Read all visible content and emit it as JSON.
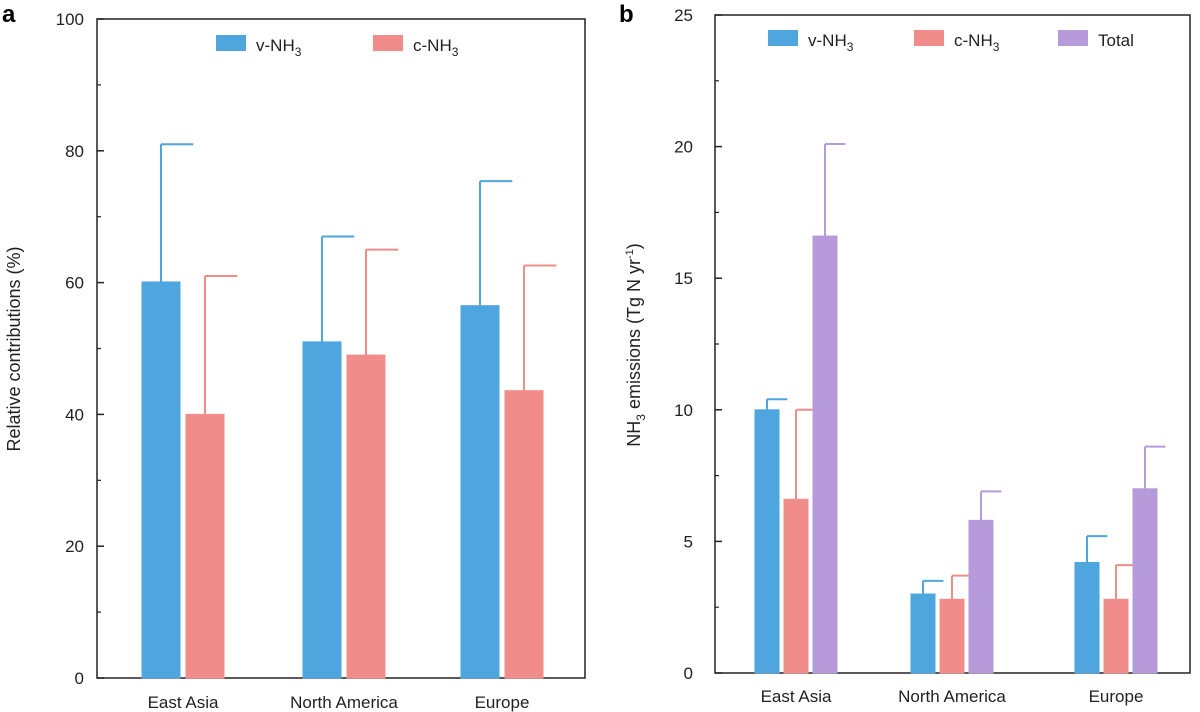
{
  "panels": [
    {
      "label": "a"
    },
    {
      "label": "b"
    }
  ],
  "colors": {
    "v-NH3": "#4fa6df",
    "c-NH3": "#f08c8a",
    "Total": "#b69ad9",
    "axis": "#222222"
  },
  "chart_data": [
    {
      "type": "bar",
      "panel": "a",
      "categories": [
        "East Asia",
        "North America",
        "Europe"
      ],
      "series": [
        {
          "name": "v-NH3",
          "values": [
            60.1,
            51.0,
            56.5
          ],
          "error_upper": [
            81.0,
            67.0,
            75.4
          ],
          "color": "#4fa6df"
        },
        {
          "name": "c-NH3",
          "values": [
            40.0,
            49.0,
            43.6
          ],
          "error_upper": [
            61.0,
            65.0,
            62.6
          ],
          "color": "#f08c8a"
        }
      ],
      "xlabel": "",
      "ylabel": "Relative contributions (%)",
      "ylim": [
        0,
        100
      ],
      "yticks": [
        "0",
        "20",
        "40",
        "60",
        "80",
        "100"
      ],
      "legend": {
        "position": "top",
        "entries": [
          {
            "base": "v-NH",
            "sub": "3"
          },
          {
            "base": "c-NH",
            "sub": "3"
          }
        ]
      },
      "grid": false
    },
    {
      "type": "bar",
      "panel": "b",
      "categories": [
        "East Asia",
        "North America",
        "Europe"
      ],
      "series": [
        {
          "name": "v-NH3",
          "values": [
            10.0,
            3.0,
            4.2
          ],
          "error_upper": [
            10.4,
            3.5,
            5.2
          ],
          "color": "#4fa6df"
        },
        {
          "name": "c-NH3",
          "values": [
            6.6,
            2.8,
            2.8
          ],
          "error_upper": [
            10.0,
            3.7,
            4.1
          ],
          "color": "#f08c8a"
        },
        {
          "name": "Total",
          "values": [
            16.6,
            5.8,
            7.0
          ],
          "error_upper": [
            20.1,
            6.9,
            8.6
          ],
          "color": "#b69ad9"
        }
      ],
      "xlabel": "",
      "ylabel": {
        "pre": "NH",
        "sub": "3",
        "mid": " emissions (Tg N yr",
        "sup": "-1",
        "post": ")"
      },
      "ylim": [
        0,
        25
      ],
      "yticks": [
        "0",
        "5",
        "10",
        "15",
        "20",
        "25"
      ],
      "legend": {
        "position": "top",
        "entries": [
          {
            "base": "v-NH",
            "sub": "3"
          },
          {
            "base": "c-NH",
            "sub": "3"
          },
          {
            "base": "Total",
            "sub": ""
          }
        ]
      },
      "grid": false
    }
  ]
}
